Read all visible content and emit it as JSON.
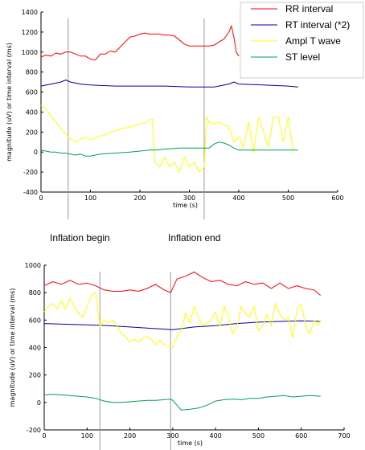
{
  "legend": {
    "entries": [
      {
        "label": "RR interval",
        "color": "#ff0000"
      },
      {
        "label": "RT interval (*2)",
        "color": "#0000a0"
      },
      {
        "label": "Ampl T wave",
        "color": "#ffff00"
      },
      {
        "label": "ST level",
        "color": "#00a050"
      }
    ]
  },
  "annotations": {
    "inflation_begin": "Inflation begin",
    "inflation_end": "Inflation end"
  },
  "chart_data": [
    {
      "type": "line",
      "xlabel": "time (s)",
      "ylabel": "magnitude (uV) or time interval (ms)",
      "xlim": [
        0,
        600
      ],
      "ylim": [
        -400,
        1400
      ],
      "xticks": [
        0,
        100,
        200,
        300,
        400,
        500,
        600
      ],
      "yticks": [
        -400,
        -200,
        0,
        200,
        400,
        600,
        800,
        1000,
        1200,
        1400
      ],
      "vlines": [
        55,
        330
      ],
      "series": [
        {
          "name": "RR interval",
          "color": "#ff0000",
          "x": [
            0,
            10,
            20,
            30,
            40,
            50,
            60,
            70,
            80,
            90,
            100,
            110,
            120,
            130,
            140,
            150,
            160,
            170,
            180,
            190,
            200,
            210,
            220,
            230,
            240,
            250,
            260,
            270,
            280,
            290,
            300,
            310,
            320,
            330,
            340,
            350,
            360,
            370,
            380,
            385,
            390,
            395,
            400
          ],
          "y": [
            950,
            970,
            960,
            990,
            980,
            1000,
            1000,
            980,
            960,
            960,
            930,
            920,
            980,
            980,
            1010,
            1000,
            1050,
            1100,
            1150,
            1160,
            1180,
            1190,
            1180,
            1180,
            1180,
            1170,
            1170,
            1160,
            1120,
            1080,
            1060,
            1060,
            1060,
            1060,
            1060,
            1070,
            1100,
            1130,
            1200,
            1260,
            1150,
            1000,
            960
          ]
        },
        {
          "name": "RT interval (*2)",
          "color": "#0000a0",
          "x": [
            0,
            20,
            40,
            50,
            60,
            80,
            100,
            150,
            200,
            250,
            300,
            350,
            380,
            390,
            400,
            450,
            500,
            520
          ],
          "y": [
            660,
            680,
            700,
            720,
            700,
            680,
            670,
            660,
            660,
            660,
            650,
            650,
            680,
            700,
            680,
            670,
            660,
            650
          ]
        },
        {
          "name": "Ampl T wave",
          "color": "#ffff00",
          "x": [
            0,
            10,
            20,
            30,
            40,
            50,
            60,
            70,
            80,
            90,
            100,
            110,
            120,
            130,
            140,
            150,
            160,
            170,
            180,
            190,
            200,
            210,
            220,
            225,
            230,
            240,
            250,
            260,
            270,
            280,
            290,
            300,
            310,
            320,
            330,
            335,
            340,
            350,
            360,
            370,
            380,
            390,
            400,
            410,
            420,
            430,
            440,
            450,
            460,
            470,
            480,
            490,
            500,
            510
          ],
          "y": [
            470,
            430,
            360,
            300,
            240,
            180,
            130,
            100,
            130,
            150,
            120,
            140,
            160,
            170,
            200,
            210,
            230,
            240,
            250,
            270,
            280,
            290,
            320,
            330,
            -100,
            -150,
            -50,
            -150,
            -100,
            -200,
            -50,
            -150,
            -100,
            -200,
            -150,
            350,
            300,
            280,
            300,
            270,
            250,
            100,
            150,
            50,
            300,
            0,
            350,
            200,
            50,
            350,
            350,
            100,
            350,
            10
          ]
        },
        {
          "name": "ST level",
          "color": "#00a050",
          "x": [
            0,
            10,
            20,
            30,
            40,
            50,
            60,
            70,
            80,
            90,
            100,
            110,
            120,
            150,
            180,
            200,
            220,
            230,
            250,
            280,
            300,
            320,
            340,
            350,
            360,
            370,
            380,
            390,
            400,
            450,
            500,
            520
          ],
          "y": [
            20,
            10,
            0,
            0,
            -10,
            -10,
            -20,
            -30,
            -20,
            -40,
            -40,
            -30,
            -20,
            -10,
            0,
            10,
            20,
            20,
            30,
            40,
            40,
            40,
            40,
            80,
            100,
            90,
            70,
            40,
            20,
            20,
            20,
            20
          ]
        }
      ]
    },
    {
      "type": "line",
      "xlabel": "time (s)",
      "ylabel": "magnitude (uV) or time interval (ms)",
      "xlim": [
        0,
        700
      ],
      "ylim": [
        -200,
        1000
      ],
      "xticks": [
        0,
        100,
        200,
        300,
        400,
        500,
        600,
        700
      ],
      "yticks": [
        -200,
        0,
        200,
        400,
        600,
        800,
        1000
      ],
      "vlines": [
        130,
        295
      ],
      "series": [
        {
          "name": "RR interval",
          "color": "#ff0000",
          "x": [
            0,
            20,
            40,
            60,
            80,
            100,
            120,
            140,
            160,
            180,
            200,
            220,
            240,
            260,
            280,
            295,
            310,
            330,
            350,
            370,
            390,
            410,
            430,
            450,
            470,
            490,
            510,
            530,
            550,
            570,
            590,
            610,
            630,
            645
          ],
          "y": [
            850,
            880,
            860,
            890,
            860,
            870,
            850,
            820,
            810,
            810,
            820,
            810,
            830,
            860,
            820,
            800,
            900,
            920,
            950,
            910,
            880,
            890,
            860,
            850,
            880,
            860,
            870,
            830,
            870,
            830,
            850,
            830,
            820,
            780
          ]
        },
        {
          "name": "RT interval (*2)",
          "color": "#0000a0",
          "x": [
            0,
            50,
            100,
            150,
            200,
            250,
            300,
            350,
            400,
            450,
            500,
            550,
            600,
            645
          ],
          "y": [
            575,
            570,
            565,
            560,
            550,
            540,
            530,
            550,
            560,
            575,
            585,
            590,
            595,
            590
          ]
        },
        {
          "name": "Ampl T wave",
          "color": "#ffff00",
          "x": [
            0,
            10,
            20,
            30,
            40,
            50,
            60,
            70,
            80,
            90,
            100,
            110,
            120,
            130,
            140,
            150,
            160,
            170,
            180,
            190,
            200,
            210,
            220,
            230,
            240,
            250,
            260,
            270,
            280,
            290,
            300,
            310,
            320,
            330,
            340,
            350,
            360,
            370,
            380,
            390,
            400,
            410,
            420,
            430,
            440,
            450,
            460,
            470,
            480,
            490,
            500,
            510,
            520,
            530,
            540,
            550,
            560,
            570,
            580,
            590,
            600,
            610,
            620,
            630,
            640,
            645
          ],
          "y": [
            660,
            700,
            720,
            680,
            740,
            680,
            760,
            700,
            650,
            620,
            700,
            780,
            800,
            550,
            600,
            580,
            600,
            560,
            500,
            480,
            440,
            460,
            440,
            470,
            480,
            460,
            420,
            450,
            420,
            410,
            400,
            480,
            520,
            650,
            580,
            700,
            620,
            560,
            580,
            600,
            660,
            550,
            700,
            620,
            500,
            560,
            700,
            650,
            620,
            700,
            520,
            560,
            640,
            560,
            720,
            640,
            600,
            620,
            470,
            680,
            720,
            560,
            500,
            600,
            560,
            600
          ]
        },
        {
          "name": "ST level",
          "color": "#00a050",
          "x": [
            0,
            20,
            40,
            60,
            80,
            100,
            120,
            140,
            160,
            180,
            200,
            220,
            240,
            260,
            280,
            295,
            300,
            310,
            320,
            340,
            360,
            380,
            400,
            420,
            440,
            460,
            480,
            500,
            520,
            540,
            560,
            580,
            600,
            620,
            645
          ],
          "y": [
            55,
            60,
            55,
            50,
            45,
            40,
            30,
            10,
            0,
            0,
            5,
            10,
            15,
            15,
            20,
            25,
            15,
            -20,
            -55,
            -50,
            -40,
            -20,
            10,
            20,
            25,
            20,
            30,
            30,
            40,
            45,
            50,
            40,
            45,
            50,
            45
          ]
        }
      ]
    }
  ]
}
